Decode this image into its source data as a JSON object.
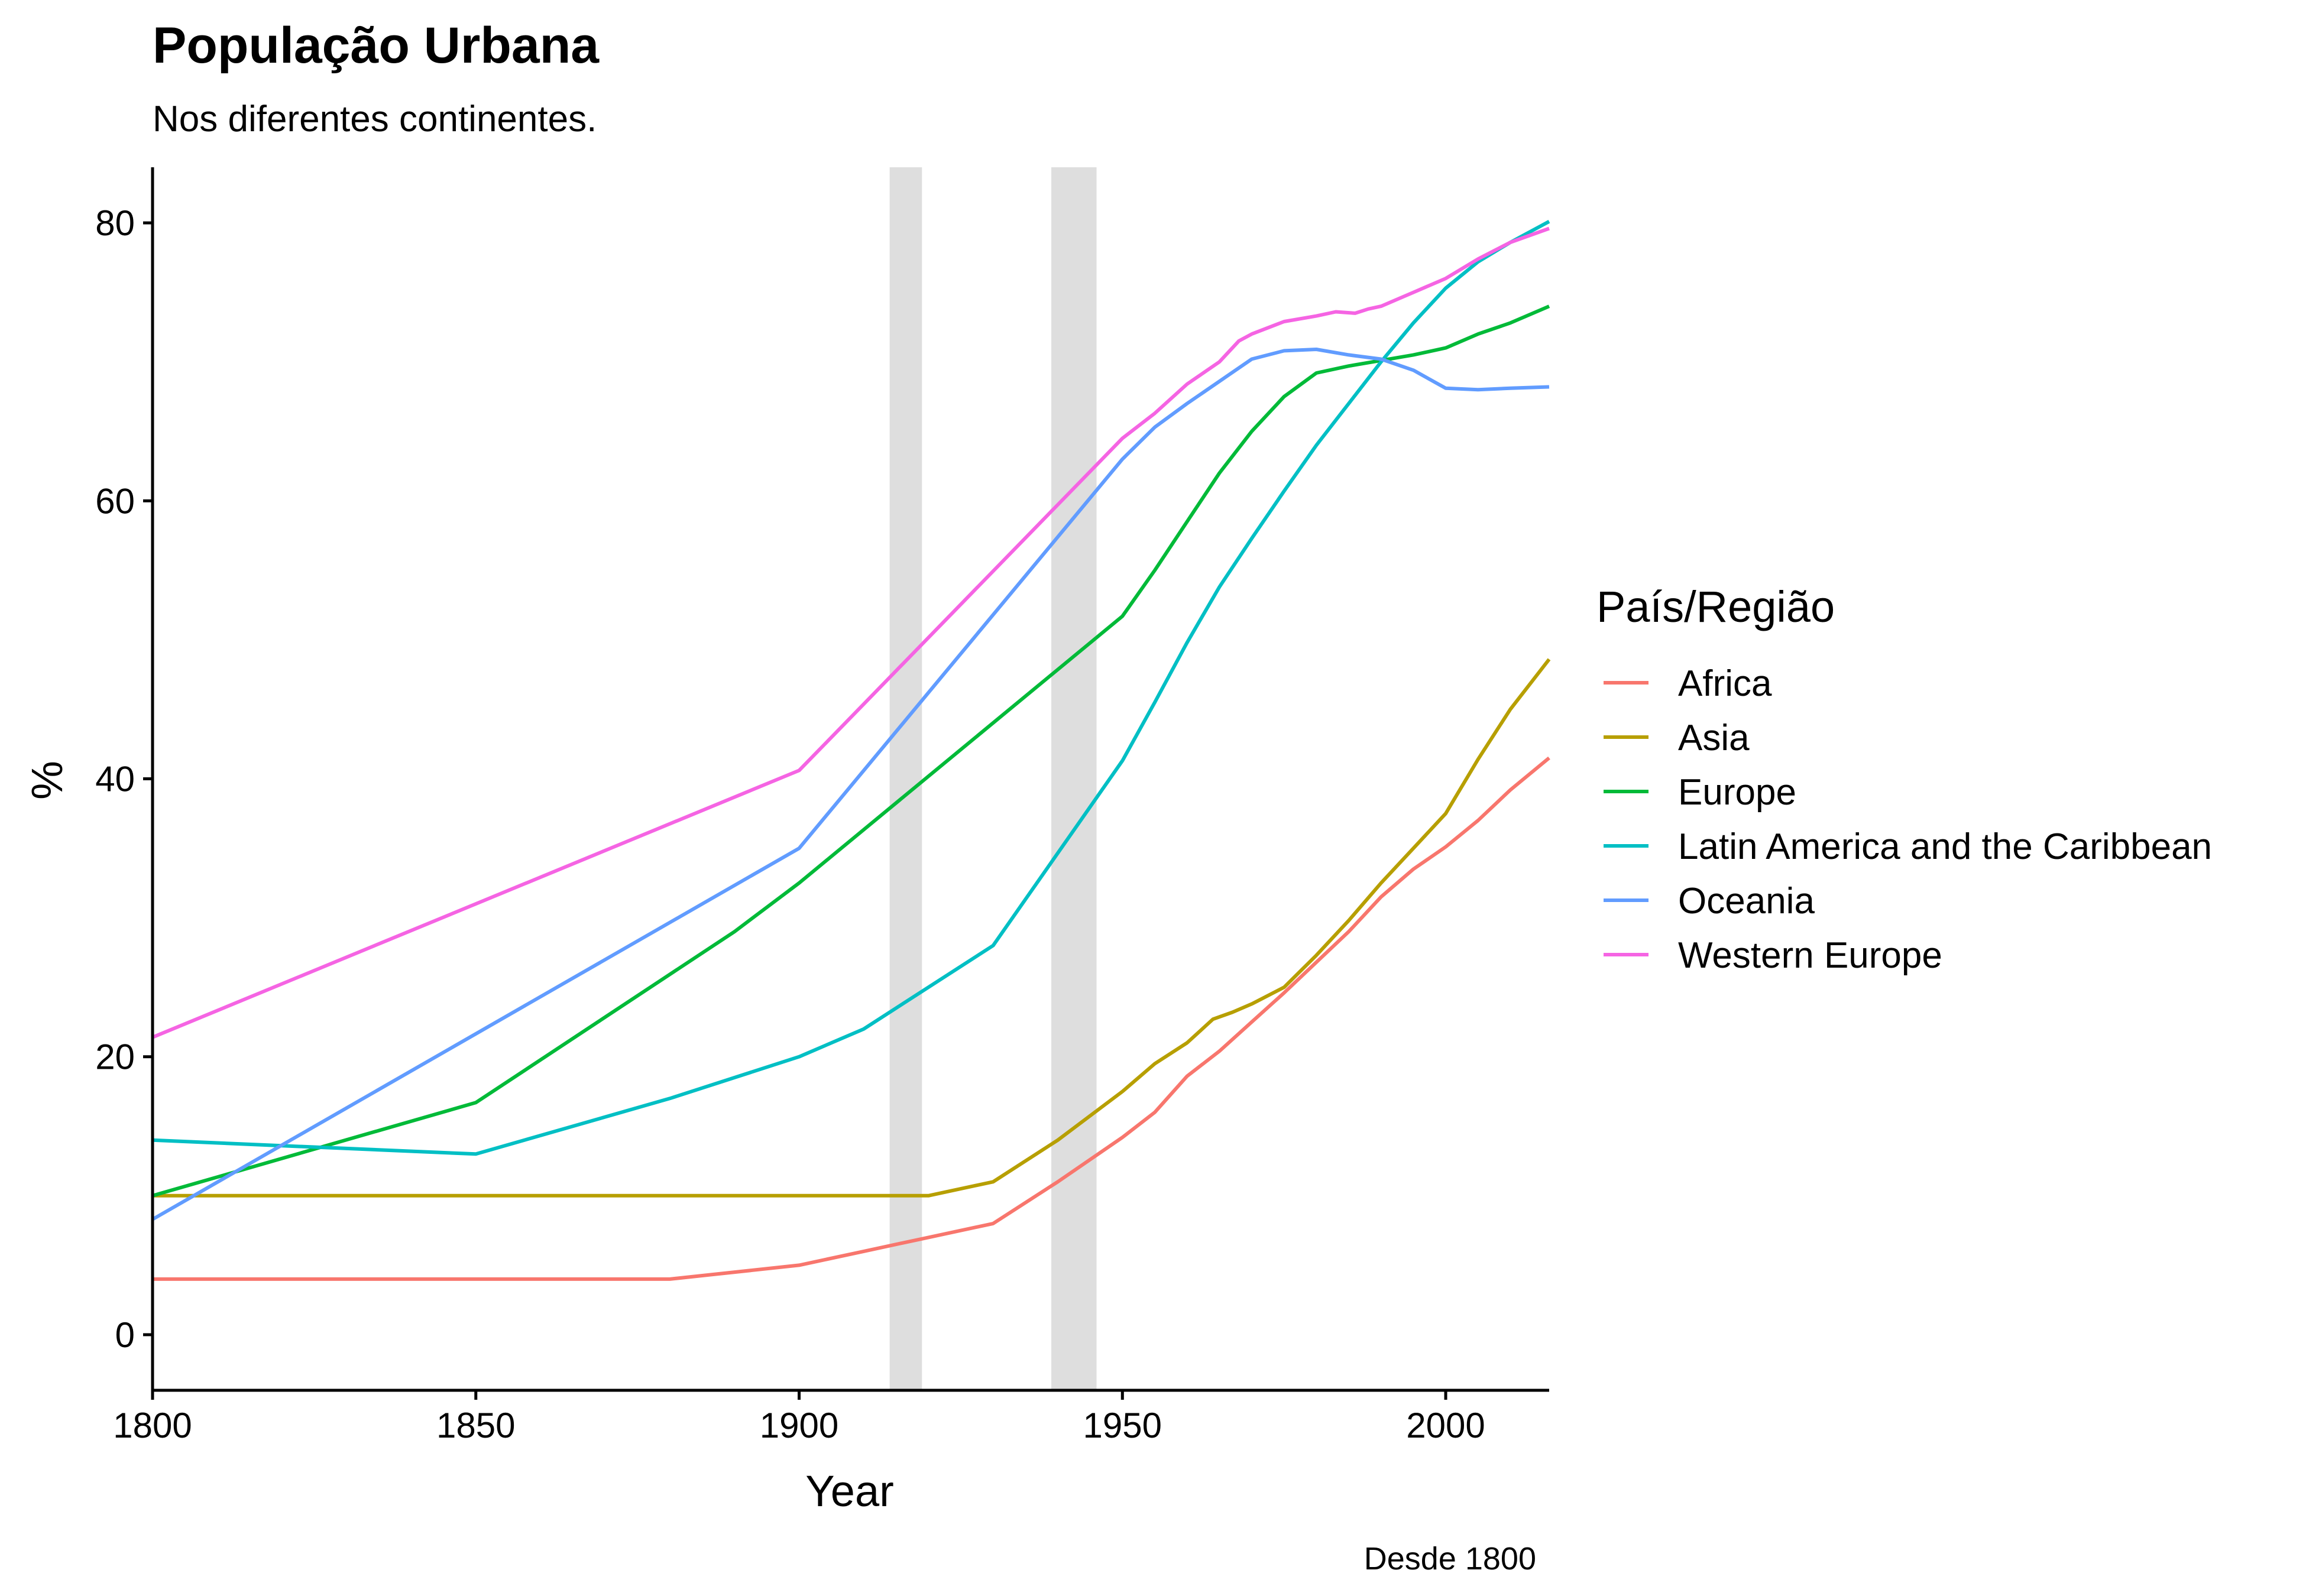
{
  "chart_data": {
    "type": "line",
    "title": "População Urbana",
    "subtitle": "Nos diferentes continentes.",
    "xlabel": "Year",
    "ylabel": "%",
    "caption": "Desde 1800",
    "xlim": [
      1800,
      2016
    ],
    "ylim": [
      -4,
      84
    ],
    "x_ticks": [
      1800,
      1850,
      1900,
      1950,
      2000
    ],
    "x_tick_labels": [
      "1800",
      "1850",
      "1900",
      "1950",
      "2000"
    ],
    "y_ticks": [
      0,
      20,
      40,
      60,
      80
    ],
    "y_tick_labels": [
      "0",
      "20",
      "40",
      "60",
      "80"
    ],
    "grid": false,
    "legend_title": "País/Região",
    "legend_position": "right",
    "shaded_periods": [
      {
        "start": 1914,
        "end": 1919,
        "color": "#dedede"
      },
      {
        "start": 1939,
        "end": 1946,
        "color": "#dedede"
      }
    ],
    "series": [
      {
        "name": "Africa",
        "color": "#F8766D",
        "points": [
          [
            1800,
            4
          ],
          [
            1880,
            4
          ],
          [
            1900,
            5
          ],
          [
            1910,
            6
          ],
          [
            1920,
            7
          ],
          [
            1930,
            8
          ],
          [
            1940,
            11
          ],
          [
            1950,
            14.2
          ],
          [
            1955,
            16
          ],
          [
            1960,
            18.6
          ],
          [
            1965,
            20.4
          ],
          [
            1970,
            22.5
          ],
          [
            1975,
            24.6
          ],
          [
            1980,
            26.8
          ],
          [
            1985,
            29
          ],
          [
            1990,
            31.5
          ],
          [
            1995,
            33.5
          ],
          [
            2000,
            35.1
          ],
          [
            2005,
            37
          ],
          [
            2010,
            39.2
          ],
          [
            2016,
            41.5
          ]
        ]
      },
      {
        "name": "Asia",
        "color": "#B79F00",
        "points": [
          [
            1800,
            10
          ],
          [
            1920,
            10
          ],
          [
            1930,
            11
          ],
          [
            1940,
            14
          ],
          [
            1950,
            17.5
          ],
          [
            1955,
            19.5
          ],
          [
            1960,
            21
          ],
          [
            1964,
            22.7
          ],
          [
            1967,
            23.2
          ],
          [
            1970,
            23.8
          ],
          [
            1975,
            25
          ],
          [
            1980,
            27.3
          ],
          [
            1985,
            29.8
          ],
          [
            1990,
            32.5
          ],
          [
            1995,
            35
          ],
          [
            2000,
            37.5
          ],
          [
            2005,
            41.4
          ],
          [
            2010,
            45
          ],
          [
            2016,
            48.6
          ]
        ]
      },
      {
        "name": "Europe",
        "color": "#00BA38",
        "points": [
          [
            1800,
            10
          ],
          [
            1850,
            16.7
          ],
          [
            1890,
            29
          ],
          [
            1900,
            32.5
          ],
          [
            1950,
            51.7
          ],
          [
            1955,
            55
          ],
          [
            1960,
            58.5
          ],
          [
            1965,
            62
          ],
          [
            1970,
            65
          ],
          [
            1975,
            67.5
          ],
          [
            1980,
            69.2
          ],
          [
            1985,
            69.7
          ],
          [
            1990,
            70.1
          ],
          [
            1995,
            70.5
          ],
          [
            2000,
            71
          ],
          [
            2005,
            72
          ],
          [
            2010,
            72.8
          ],
          [
            2016,
            74
          ]
        ]
      },
      {
        "name": "Latin America and the Caribbean",
        "color": "#00BFC4",
        "points": [
          [
            1800,
            14
          ],
          [
            1850,
            13
          ],
          [
            1880,
            17
          ],
          [
            1900,
            20
          ],
          [
            1910,
            22
          ],
          [
            1930,
            28
          ],
          [
            1950,
            41.3
          ],
          [
            1955,
            45.5
          ],
          [
            1960,
            49.8
          ],
          [
            1965,
            53.8
          ],
          [
            1970,
            57.3
          ],
          [
            1975,
            60.7
          ],
          [
            1980,
            64
          ],
          [
            1985,
            67
          ],
          [
            1990,
            70
          ],
          [
            1995,
            72.8
          ],
          [
            2000,
            75.3
          ],
          [
            2005,
            77.2
          ],
          [
            2010,
            78.6
          ],
          [
            2016,
            80.1
          ]
        ]
      },
      {
        "name": "Oceania",
        "color": "#619CFF",
        "points": [
          [
            1800,
            8.3
          ],
          [
            1900,
            35
          ],
          [
            1950,
            63
          ],
          [
            1955,
            65.3
          ],
          [
            1960,
            67
          ],
          [
            1965,
            68.6
          ],
          [
            1970,
            70.2
          ],
          [
            1975,
            70.8
          ],
          [
            1980,
            70.9
          ],
          [
            1985,
            70.5
          ],
          [
            1990,
            70.2
          ],
          [
            1995,
            69.4
          ],
          [
            2000,
            68.1
          ],
          [
            2005,
            68
          ],
          [
            2010,
            68.1
          ],
          [
            2016,
            68.2
          ]
        ]
      },
      {
        "name": "Western Europe",
        "color": "#F564E3",
        "points": [
          [
            1800,
            21.4
          ],
          [
            1900,
            40.6
          ],
          [
            1950,
            64.5
          ],
          [
            1955,
            66.3
          ],
          [
            1960,
            68.4
          ],
          [
            1965,
            70
          ],
          [
            1968,
            71.5
          ],
          [
            1970,
            72
          ],
          [
            1975,
            72.9
          ],
          [
            1980,
            73.3
          ],
          [
            1983,
            73.6
          ],
          [
            1986,
            73.5
          ],
          [
            1988,
            73.8
          ],
          [
            1990,
            74
          ],
          [
            1995,
            75
          ],
          [
            2000,
            76
          ],
          [
            2005,
            77.4
          ],
          [
            2010,
            78.6
          ],
          [
            2016,
            79.6
          ]
        ]
      }
    ]
  }
}
